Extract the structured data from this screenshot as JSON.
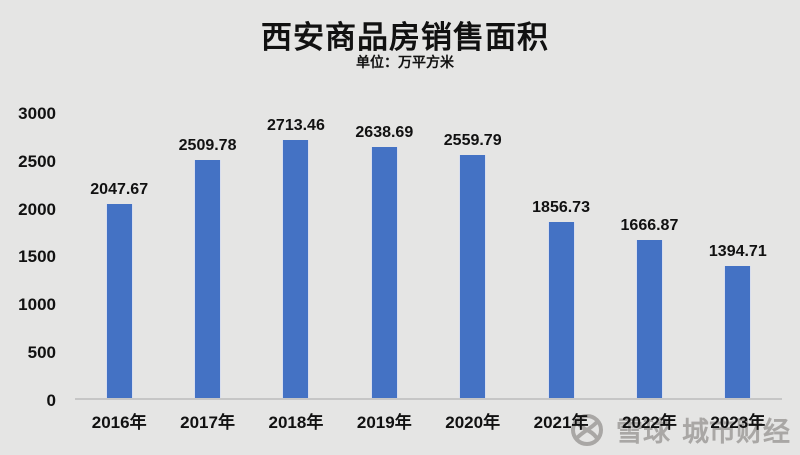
{
  "title": "西安商品房销售面积",
  "subtitle": "单位：万平方米",
  "colors": {
    "background": "#E5E5E4",
    "bar": "#4472C4",
    "axis_line": "#C6C6C6",
    "text": "#111111",
    "watermark": "#A9A7A5"
  },
  "watermark": {
    "logo_icon": "xueqiu-circle-logo",
    "brand": "雪球",
    "channel": "城市财经"
  },
  "chart_data": {
    "type": "bar",
    "title": "西安商品房销售面积",
    "subtitle": "单位：万平方米",
    "categories": [
      "2016年",
      "2017年",
      "2018年",
      "2019年",
      "2020年",
      "2021年",
      "2022年",
      "2023年"
    ],
    "values": [
      2047.67,
      2509.78,
      2713.46,
      2638.69,
      2559.79,
      1856.73,
      1666.87,
      1394.71
    ],
    "data_labels": [
      "2047.67",
      "2509.78",
      "2713.46",
      "2638.69",
      "2559.79",
      "1856.73",
      "1666.87",
      "1394.71"
    ],
    "xlabel": "",
    "ylabel": "",
    "ylim": [
      0,
      3000
    ],
    "yticks": [
      0,
      500,
      1000,
      1500,
      2000,
      2500,
      3000
    ],
    "grid": false,
    "legend": false
  }
}
